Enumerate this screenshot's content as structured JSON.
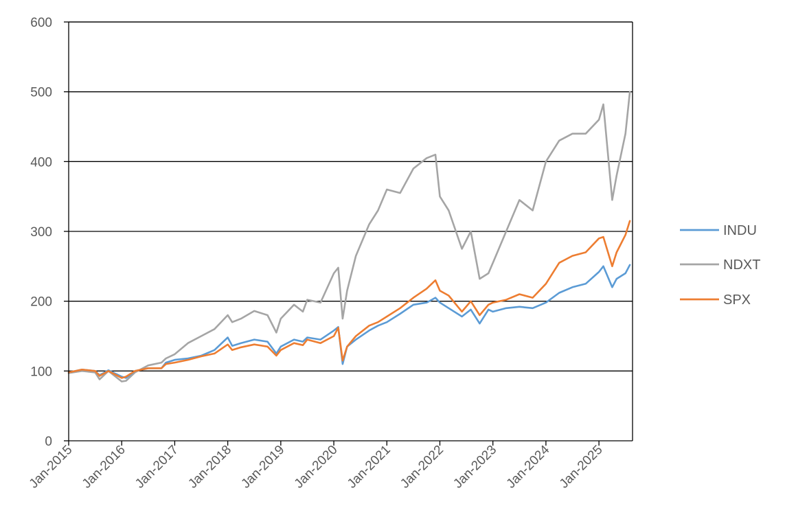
{
  "chart_data": {
    "type": "line",
    "title": "",
    "xlabel": "",
    "ylabel": "",
    "ylim": [
      0,
      600
    ],
    "yticks": [
      0,
      100,
      200,
      300,
      400,
      500,
      600
    ],
    "xlim": [
      "2015-01",
      "2025-08"
    ],
    "xticks": [
      "Jan-2015",
      "Jan-2016",
      "Jan-2017",
      "Jan-2018",
      "Jan-2019",
      "Jan-2020",
      "Jan-2021",
      "Jan-2022",
      "Jan-2023",
      "Jan-2024",
      "Jan-2025"
    ],
    "grid": "horizontal",
    "legend": "right",
    "colors": {
      "INDU": "#5b9bd5",
      "NDXT": "#a5a5a5",
      "SPX": "#ed7d31"
    },
    "x": [
      "2015-01",
      "2015-04",
      "2015-07",
      "2015-08",
      "2015-10",
      "2016-01",
      "2016-02",
      "2016-04",
      "2016-07",
      "2016-10",
      "2016-11",
      "2017-01",
      "2017-04",
      "2017-07",
      "2017-10",
      "2018-01",
      "2018-02",
      "2018-04",
      "2018-07",
      "2018-10",
      "2018-12",
      "2019-01",
      "2019-04",
      "2019-06",
      "2019-07",
      "2019-10",
      "2020-01",
      "2020-02",
      "2020-03",
      "2020-04",
      "2020-06",
      "2020-09",
      "2020-11",
      "2021-01",
      "2021-04",
      "2021-07",
      "2021-10",
      "2021-12",
      "2022-01",
      "2022-03",
      "2022-06",
      "2022-08",
      "2022-10",
      "2022-12",
      "2023-01",
      "2023-04",
      "2023-07",
      "2023-10",
      "2024-01",
      "2024-04",
      "2024-07",
      "2024-10",
      "2025-01",
      "2025-02",
      "2025-04",
      "2025-05",
      "2025-07",
      "2025-08"
    ],
    "series": [
      {
        "name": "INDU",
        "values": [
          98,
          102,
          100,
          94,
          101,
          92,
          90,
          100,
          104,
          104,
          112,
          116,
          118,
          122,
          130,
          148,
          136,
          140,
          145,
          142,
          125,
          135,
          145,
          142,
          148,
          145,
          158,
          163,
          110,
          135,
          145,
          158,
          165,
          170,
          182,
          195,
          198,
          205,
          198,
          190,
          178,
          188,
          168,
          188,
          185,
          190,
          192,
          190,
          198,
          212,
          220,
          225,
          242,
          250,
          220,
          232,
          240,
          252
        ]
      },
      {
        "name": "NDXT",
        "values": [
          97,
          100,
          98,
          88,
          100,
          85,
          86,
          98,
          108,
          112,
          118,
          124,
          140,
          150,
          160,
          180,
          170,
          175,
          186,
          180,
          155,
          175,
          195,
          185,
          202,
          198,
          240,
          248,
          175,
          215,
          265,
          310,
          330,
          360,
          355,
          390,
          405,
          410,
          350,
          330,
          275,
          300,
          232,
          240,
          255,
          300,
          345,
          330,
          400,
          430,
          440,
          440,
          460,
          482,
          345,
          380,
          440,
          500
        ]
      },
      {
        "name": "SPX",
        "values": [
          98,
          102,
          100,
          93,
          100,
          90,
          92,
          100,
          104,
          104,
          110,
          112,
          116,
          121,
          125,
          138,
          130,
          134,
          138,
          135,
          122,
          130,
          140,
          137,
          145,
          140,
          150,
          162,
          115,
          135,
          150,
          165,
          170,
          178,
          190,
          205,
          218,
          230,
          215,
          208,
          185,
          200,
          180,
          195,
          198,
          202,
          210,
          205,
          225,
          255,
          265,
          270,
          290,
          292,
          250,
          270,
          295,
          315
        ]
      }
    ]
  }
}
